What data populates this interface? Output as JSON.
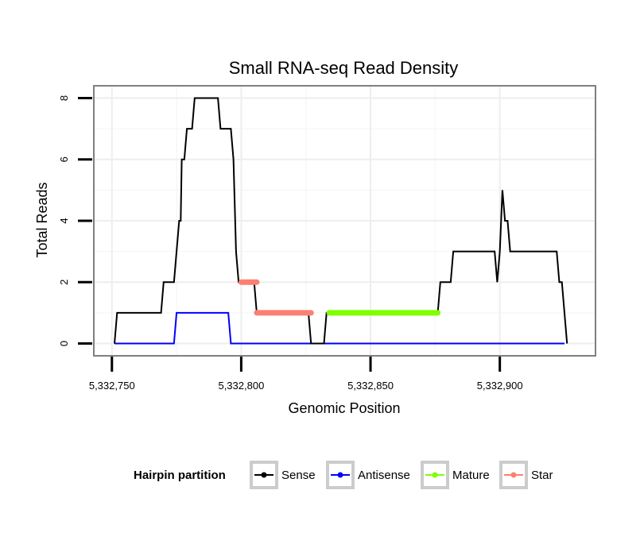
{
  "chart_data": {
    "type": "line",
    "title": "Small RNA-seq Read Density",
    "xlabel": "Genomic Position",
    "ylabel": "Total Reads",
    "xlim": [
      5332743,
      5332937
    ],
    "ylim": [
      -0.4,
      8.4
    ],
    "x_ticks": [
      5332750,
      5332800,
      5332850,
      5332900
    ],
    "x_tick_labels": [
      "5,332,750",
      "5,332,800",
      "5,332,850",
      "5,332,900"
    ],
    "y_ticks": [
      0,
      2,
      4,
      6,
      8
    ],
    "y_tick_labels": [
      "0",
      "2",
      "4",
      "6",
      "8"
    ],
    "grid": true,
    "legend": {
      "title": "Hairpin partition",
      "position": "bottom",
      "entries": [
        {
          "name": "Sense",
          "color": "#000000"
        },
        {
          "name": "Antisense",
          "color": "#0000ff"
        },
        {
          "name": "Mature",
          "color": "#7fff00"
        },
        {
          "name": "Star",
          "color": "#fa8072"
        }
      ]
    },
    "series": [
      {
        "name": "Sense",
        "color": "#000000",
        "x": [
          5332751,
          5332752,
          5332769,
          5332770,
          5332774,
          5332776,
          5332776.6,
          5332777,
          5332778,
          5332779,
          5332781,
          5332782,
          5332784,
          5332785,
          5332791,
          5332792,
          5332796,
          5332797,
          5332798,
          5332799,
          5332800,
          5332805,
          5332806,
          5332826,
          5332827,
          5332832,
          5332833,
          5332834,
          5332876,
          5332877,
          5332881,
          5332882,
          5332897,
          5332898,
          5332899,
          5332900,
          5332901,
          5332902,
          5332903,
          5332904,
          5332922,
          5332923,
          5332924,
          5332926
        ],
        "y": [
          0,
          1,
          1,
          2,
          2,
          4,
          4,
          6,
          6,
          7,
          7,
          8,
          8,
          8,
          8,
          7,
          7,
          6,
          3,
          2,
          2,
          2,
          1,
          1,
          0,
          0,
          1,
          1,
          1,
          2,
          2,
          3,
          3,
          3,
          2,
          3,
          5,
          4,
          4,
          3,
          3,
          2,
          2,
          0
        ]
      },
      {
        "name": "Antisense",
        "color": "#0000ff",
        "x": [
          5332751,
          5332774,
          5332775,
          5332795,
          5332796,
          5332925
        ],
        "y": [
          0,
          0,
          1,
          1,
          0,
          0
        ]
      },
      {
        "name": "Mature",
        "color": "#7fff00",
        "x": [
          5332834,
          5332876
        ],
        "y": [
          1,
          1
        ]
      },
      {
        "name": "Star",
        "color": "#fa8072",
        "segments": [
          {
            "x": [
              5332800,
              5332806
            ],
            "y": [
              2,
              2
            ]
          },
          {
            "x": [
              5332806,
              5332827
            ],
            "y": [
              1,
              1
            ]
          }
        ]
      }
    ]
  }
}
